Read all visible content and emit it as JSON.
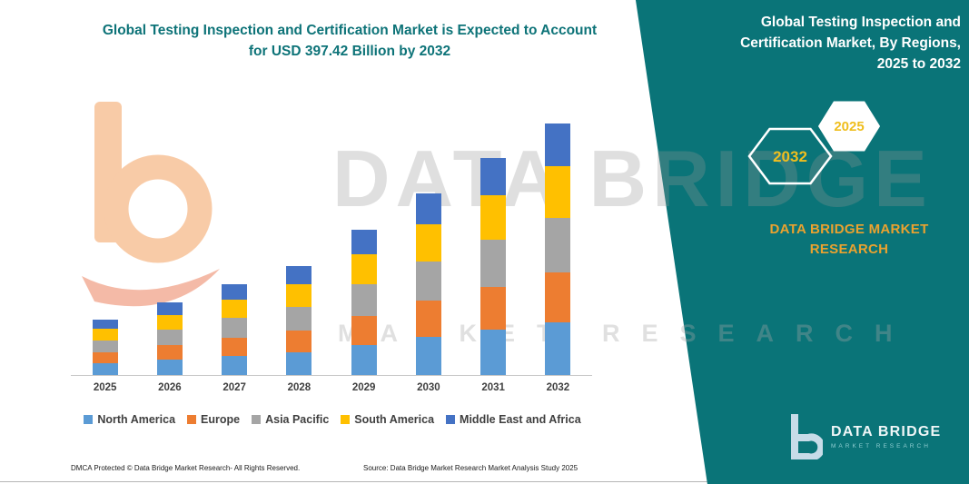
{
  "left": {
    "title_lines": [
      "Global Testing Inspection and Certification Market is Expected to Account",
      "for USD 397.42 Billion by 2032"
    ],
    "footer_left": "DMCA Protected © Data Bridge Market Research-  All Rights Reserved.",
    "footer_source": "Source: Data Bridge Market Research  Market Analysis Study 2025"
  },
  "watermark": {
    "line1": "DATA BRIDGE",
    "line2": "MARKET RESEARCH"
  },
  "panel": {
    "title_lines": [
      "Global Testing Inspection and",
      "Certification Market, By Regions,",
      "2025 to 2032"
    ],
    "hex_back_year": "2032",
    "hex_front_year": "2025",
    "brand_lines": [
      "DATA BRIDGE MARKET",
      "RESEARCH"
    ],
    "logo_name": "DATA BRIDGE",
    "logo_sub": "MARKET RESEARCH",
    "colors": {
      "teal": "#0A7478",
      "yellow": "#EFBE1E",
      "brand_gold": "#EAA22F"
    }
  },
  "chart_data": {
    "type": "bar",
    "stacked": true,
    "title": "Global Testing Inspection and Certification Market, By Regions, 2025 to 2032 (USD Billion)",
    "xlabel": "",
    "ylabel": "",
    "categories": [
      "2025",
      "2026",
      "2027",
      "2028",
      "2029",
      "2030",
      "2031",
      "2032"
    ],
    "series": [
      {
        "name": "North America",
        "color": "#5B9BD5",
        "values": [
          18.3,
          24.0,
          30.0,
          36.0,
          48.0,
          60.0,
          71.4,
          83.1
        ]
      },
      {
        "name": "Europe",
        "color": "#ED7D31",
        "values": [
          17.4,
          22.8,
          28.6,
          34.3,
          45.7,
          57.1,
          68.0,
          79.0
        ]
      },
      {
        "name": "Asia Pacific",
        "color": "#A5A5A5",
        "values": [
          19.0,
          24.9,
          31.1,
          37.4,
          49.8,
          62.3,
          74.1,
          86.2
        ]
      },
      {
        "name": "South America",
        "color": "#FFC000",
        "values": [
          18.0,
          23.6,
          29.6,
          35.5,
          47.3,
          59.1,
          70.3,
          81.9
        ]
      },
      {
        "name": "Middle East and Africa",
        "color": "#4472C4",
        "values": [
          14.9,
          19.5,
          24.4,
          29.3,
          39.0,
          48.8,
          58.1,
          67.2
        ]
      }
    ],
    "totals": [
      87.6,
      114.8,
      143.7,
      172.5,
      229.8,
      287.3,
      342.0,
      397.4
    ],
    "ylim": [
      0,
      430
    ],
    "grid": false,
    "legend_position": "bottom",
    "annotation": "2032 total = USD 397.42 Billion"
  }
}
